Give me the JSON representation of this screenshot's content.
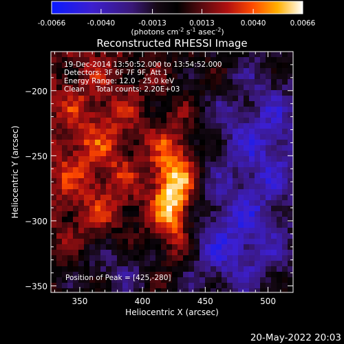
{
  "chart_data": {
    "type": "heatmap",
    "title": "Reconstructed RHESSI Image",
    "xlabel": "Heliocentric X (arcsec)",
    "ylabel": "Heliocentric Y (arcsec)",
    "xlim": [
      327,
      520
    ],
    "ylim": [
      -355,
      -170
    ],
    "xticks": [
      350,
      400,
      450,
      500
    ],
    "yticks": [
      -200,
      -250,
      -300,
      -350
    ],
    "colorbar": {
      "ticks": [
        "-0.0066",
        "-0.0040",
        "-0.0013",
        "0.0013",
        "0.0040",
        "0.0066"
      ],
      "range": [
        -0.0066,
        0.0066
      ],
      "units_label": "(photons cm-2 s-1 asec-2)"
    },
    "annotations": [
      "19-Dec-2014 13:50:52.000 to 13:54:52.000",
      "Detectors: 3F 6F 7F 9F, Att 1",
      "Energy Range: 12.0 - 25.0 keV",
      "Clean     Total counts: 2.20E+03"
    ],
    "peak_label": "Position of Peak = [425,-280]",
    "peak": [
      425,
      -280
    ],
    "timestamp": "20-May-2022 20:03"
  },
  "colors": {
    "background": "#000000",
    "low": "#2020ff",
    "mid": "#000000",
    "high": "#ffffff"
  }
}
